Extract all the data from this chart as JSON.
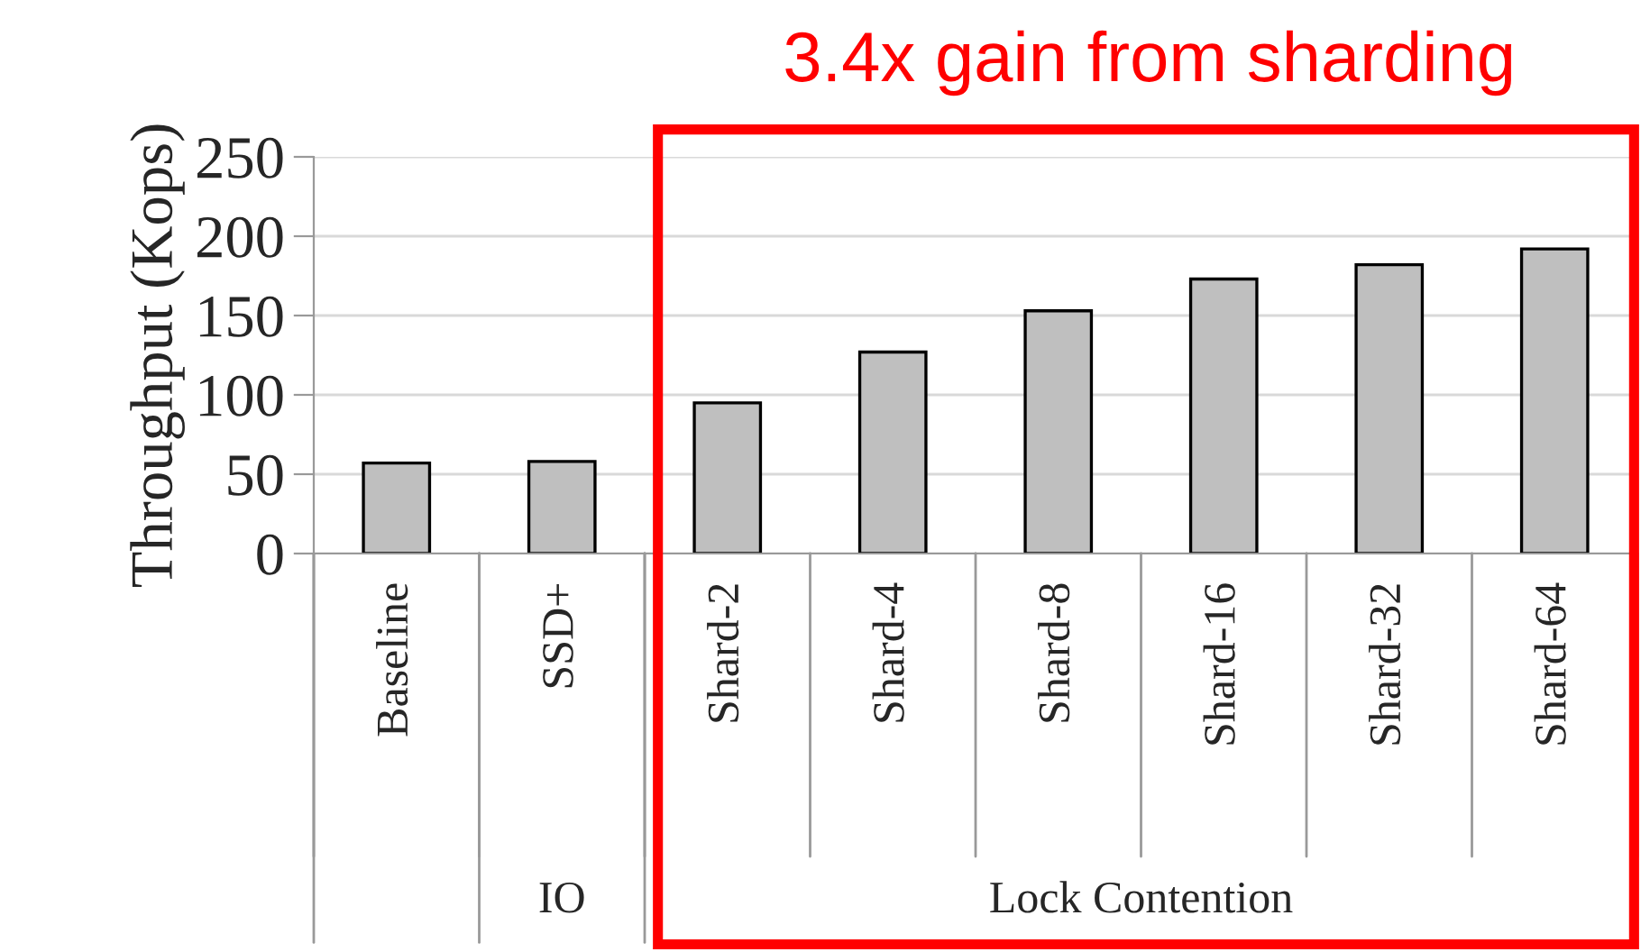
{
  "chart_data": {
    "type": "bar",
    "ylabel": "Throughput (Kops)",
    "categories": [
      "Baseline",
      "SSD+",
      "Shard-2",
      "Shard-4",
      "Shard-8",
      "Shard-16",
      "Shard-32",
      "Shard-64"
    ],
    "values": [
      57,
      58,
      95,
      127,
      153,
      173,
      182,
      192
    ],
    "color": "#bfbfbf",
    "ylim": [
      0,
      250
    ],
    "yticks": [
      0,
      50,
      100,
      150,
      200,
      250
    ],
    "grid": "y",
    "annotations": [
      "3.4x gain from sharding",
      "IO",
      "Lock Contention"
    ]
  }
}
